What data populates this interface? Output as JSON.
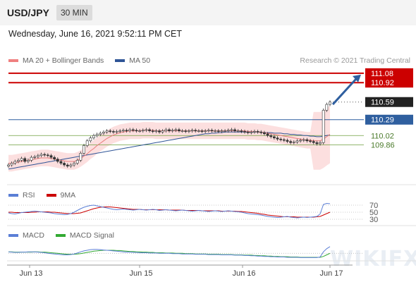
{
  "header": {
    "symbol": "USD/JPY",
    "timeframe": "30 MIN"
  },
  "datetime": "Wednesday, June 16, 2021 9:52:11 PM CET",
  "legend_main": [
    {
      "label": "MA 20 + Bollinger Bands",
      "color": "#f08080"
    },
    {
      "label": "MA 50",
      "color": "#2f5597"
    }
  ],
  "credit": "Research © 2021 Trading Central",
  "legend_rsi": [
    {
      "label": "RSI",
      "color": "#5b7fd6"
    },
    {
      "label": "9MA",
      "color": "#cc0000"
    }
  ],
  "legend_macd": [
    {
      "label": "MACD",
      "color": "#5b7fd6"
    },
    {
      "label": "MACD Signal",
      "color": "#33aa33"
    }
  ],
  "watermark": "WIKIFX",
  "colors": {
    "red_level": "#cc0000",
    "blue_level": "#2f5f9f",
    "green_level": "#6f9f3f",
    "arrow": "#2f5f9f",
    "price_tag": "#222222"
  },
  "chart_data": {
    "type": "candlestick",
    "x_ticks": [
      "Jun 13",
      "Jun 15",
      "Jun 16",
      "Jun 17"
    ],
    "price_levels": [
      {
        "value": "111.08",
        "style": "resistance",
        "color": "#cc0000"
      },
      {
        "value": "110.92",
        "style": "resistance",
        "color": "#cc0000"
      },
      {
        "value": "110.59",
        "style": "last-price",
        "color": "#222222"
      },
      {
        "value": "110.29",
        "style": "pivot",
        "color": "#2f5f9f"
      },
      {
        "value": "110.02",
        "style": "support",
        "color": "#6f9f3f"
      },
      {
        "value": "109.86",
        "style": "support",
        "color": "#6f9f3f"
      }
    ],
    "price_ylim": [
      109.4,
      111.15
    ],
    "price_close": [
      109.52,
      109.55,
      109.58,
      109.6,
      109.63,
      109.58,
      109.6,
      109.65,
      109.66,
      109.68,
      109.7,
      109.69,
      109.68,
      109.65,
      109.62,
      109.58,
      109.55,
      109.52,
      109.5,
      109.52,
      109.55,
      109.6,
      109.72,
      109.85,
      109.93,
      109.98,
      110.02,
      110.04,
      110.06,
      110.08,
      110.1,
      110.09,
      110.08,
      110.09,
      110.1,
      110.11,
      110.1,
      110.12,
      110.11,
      110.1,
      110.1,
      110.11,
      110.12,
      110.1,
      110.09,
      110.1,
      110.08,
      110.1,
      110.12,
      110.1,
      110.11,
      110.12,
      110.1,
      110.1,
      110.09,
      110.1,
      110.11,
      110.1,
      110.1,
      110.09,
      110.1,
      110.11,
      110.1,
      110.1,
      110.09,
      110.1,
      110.1,
      110.11,
      110.12,
      110.1,
      110.1,
      110.09,
      110.08,
      110.07,
      110.08,
      110.09,
      110.08,
      110.07,
      110.05,
      110.02,
      110.0,
      109.98,
      109.96,
      109.95,
      109.94,
      109.92,
      109.9,
      109.91,
      109.93,
      109.94,
      109.95,
      109.93,
      109.92,
      109.9,
      109.88,
      109.9,
      110.45,
      110.55,
      110.59
    ],
    "ma20": [
      109.55,
      109.55,
      109.56,
      109.57,
      109.58,
      109.59,
      109.6,
      109.61,
      109.62,
      109.63,
      109.64,
      109.64,
      109.64,
      109.63,
      109.62,
      109.61,
      109.6,
      109.59,
      109.58,
      109.58,
      109.58,
      109.6,
      109.63,
      109.67,
      109.71,
      109.76,
      109.8,
      109.85,
      109.89,
      109.93,
      109.97,
      110.0,
      110.03,
      110.05,
      110.07,
      110.08,
      110.09,
      110.1,
      110.1,
      110.1,
      110.1,
      110.11,
      110.11,
      110.11,
      110.11,
      110.1,
      110.1,
      110.1,
      110.1,
      110.1,
      110.1,
      110.1,
      110.1,
      110.1,
      110.1,
      110.1,
      110.1,
      110.1,
      110.1,
      110.1,
      110.1,
      110.1,
      110.1,
      110.1,
      110.1,
      110.1,
      110.1,
      110.1,
      110.1,
      110.1,
      110.1,
      110.1,
      110.1,
      110.09,
      110.09,
      110.09,
      110.08,
      110.08,
      110.07,
      110.06,
      110.05,
      110.04,
      110.03,
      110.02,
      110.01,
      110.0,
      109.99,
      109.98,
      109.97,
      109.96,
      109.95,
      109.94,
      109.94,
      109.93,
      109.93,
      109.93,
      109.96,
      110.0,
      110.04
    ],
    "ma50": [
      109.45,
      109.46,
      109.47,
      109.48,
      109.49,
      109.5,
      109.51,
      109.52,
      109.53,
      109.54,
      109.55,
      109.56,
      109.57,
      109.58,
      109.59,
      109.6,
      109.61,
      109.62,
      109.63,
      109.64,
      109.65,
      109.66,
      109.67,
      109.68,
      109.69,
      109.7,
      109.71,
      109.72,
      109.73,
      109.74,
      109.75,
      109.76,
      109.77,
      109.78,
      109.79,
      109.8,
      109.81,
      109.82,
      109.83,
      109.84,
      109.85,
      109.86,
      109.87,
      109.88,
      109.89,
      109.9,
      109.91,
      109.92,
      109.93,
      109.94,
      109.95,
      109.96,
      109.97,
      109.98,
      109.99,
      110.0,
      110.01,
      110.02,
      110.03,
      110.04,
      110.05,
      110.05,
      110.06,
      110.06,
      110.07,
      110.07,
      110.08,
      110.08,
      110.08,
      110.08,
      110.08,
      110.08,
      110.08,
      110.08,
      110.08,
      110.08,
      110.08,
      110.08,
      110.07,
      110.07,
      110.07,
      110.06,
      110.06,
      110.06,
      110.05,
      110.05,
      110.04,
      110.04,
      110.03,
      110.03,
      110.02,
      110.02,
      110.01,
      110.01,
      110.0,
      110.0,
      110.01,
      110.02,
      110.03
    ],
    "forecast_arrow": {
      "from": 110.55,
      "to": 111.08
    },
    "rsi": {
      "levels": [
        "70",
        "50",
        "30"
      ],
      "ylim": [
        20,
        80
      ],
      "rsi": [
        48,
        46,
        45,
        47,
        49,
        50,
        51,
        52,
        53,
        52,
        51,
        50,
        49,
        48,
        46,
        45,
        44,
        43,
        44,
        46,
        50,
        55,
        60,
        64,
        67,
        69,
        70,
        68,
        66,
        64,
        62,
        60,
        58,
        57,
        58,
        59,
        58,
        57,
        56,
        57,
        58,
        57,
        56,
        57,
        58,
        57,
        55,
        56,
        57,
        56,
        55,
        54,
        55,
        56,
        55,
        54,
        53,
        54,
        55,
        54,
        53,
        52,
        53,
        54,
        53,
        52,
        53,
        54,
        53,
        52,
        51,
        50,
        48,
        46,
        45,
        44,
        43,
        42,
        40,
        38,
        37,
        36,
        35,
        36,
        37,
        38,
        36,
        35,
        34,
        35,
        36,
        35,
        36,
        37,
        38,
        45,
        72,
        75,
        74
      ],
      "ma9": [
        50,
        50,
        49,
        49,
        49,
        49,
        49,
        50,
        50,
        51,
        51,
        51,
        51,
        50,
        50,
        49,
        48,
        47,
        46,
        46,
        46,
        47,
        48,
        51,
        54,
        57,
        60,
        62,
        64,
        65,
        65,
        65,
        64,
        63,
        62,
        61,
        60,
        59,
        58,
        58,
        58,
        57,
        57,
        57,
        57,
        57,
        57,
        57,
        57,
        56,
        56,
        56,
        56,
        56,
        55,
        55,
        55,
        55,
        55,
        54,
        54,
        54,
        54,
        54,
        54,
        53,
        53,
        53,
        53,
        53,
        52,
        52,
        51,
        50,
        49,
        48,
        47,
        45,
        44,
        42,
        41,
        40,
        39,
        38,
        37,
        37,
        37,
        37,
        36,
        36,
        36,
        36,
        36,
        36,
        37,
        38,
        42,
        46,
        50
      ]
    },
    "macd": {
      "ylim": [
        -0.2,
        0.4
      ],
      "macd": [
        0.05,
        0.04,
        0.03,
        0.03,
        0.04,
        0.04,
        0.05,
        0.05,
        0.05,
        0.04,
        0.03,
        0.02,
        0.0,
        -0.01,
        -0.02,
        -0.03,
        -0.04,
        -0.05,
        -0.05,
        -0.04,
        -0.02,
        0.01,
        0.05,
        0.08,
        0.1,
        0.12,
        0.13,
        0.13,
        0.12,
        0.11,
        0.1,
        0.09,
        0.08,
        0.07,
        0.06,
        0.05,
        0.04,
        0.04,
        0.03,
        0.03,
        0.02,
        0.02,
        0.02,
        0.01,
        0.01,
        0.01,
        0.0,
        0.0,
        0.0,
        0.0,
        -0.01,
        -0.01,
        -0.01,
        -0.02,
        -0.02,
        -0.02,
        -0.02,
        -0.03,
        -0.03,
        -0.03,
        -0.03,
        -0.04,
        -0.04,
        -0.04,
        -0.04,
        -0.05,
        -0.05,
        -0.05,
        -0.05,
        -0.06,
        -0.06,
        -0.06,
        -0.07,
        -0.07,
        -0.08,
        -0.08,
        -0.09,
        -0.09,
        -0.1,
        -0.1,
        -0.11,
        -0.11,
        -0.12,
        -0.12,
        -0.12,
        -0.13,
        -0.13,
        -0.13,
        -0.13,
        -0.14,
        -0.14,
        -0.14,
        -0.14,
        -0.14,
        -0.14,
        -0.12,
        0.05,
        0.15,
        0.22
      ],
      "signal": [
        0.05,
        0.05,
        0.04,
        0.04,
        0.04,
        0.04,
        0.04,
        0.04,
        0.05,
        0.05,
        0.04,
        0.04,
        0.03,
        0.02,
        0.01,
        0.0,
        -0.01,
        -0.02,
        -0.03,
        -0.03,
        -0.03,
        -0.02,
        -0.01,
        0.01,
        0.03,
        0.05,
        0.07,
        0.08,
        0.09,
        0.1,
        0.1,
        0.1,
        0.1,
        0.09,
        0.09,
        0.08,
        0.07,
        0.06,
        0.06,
        0.05,
        0.05,
        0.04,
        0.04,
        0.03,
        0.03,
        0.02,
        0.02,
        0.02,
        0.01,
        0.01,
        0.01,
        0.0,
        0.0,
        0.0,
        -0.01,
        -0.01,
        -0.01,
        -0.02,
        -0.02,
        -0.02,
        -0.02,
        -0.03,
        -0.03,
        -0.03,
        -0.03,
        -0.04,
        -0.04,
        -0.04,
        -0.04,
        -0.05,
        -0.05,
        -0.05,
        -0.06,
        -0.06,
        -0.06,
        -0.07,
        -0.07,
        -0.08,
        -0.08,
        -0.09,
        -0.09,
        -0.1,
        -0.1,
        -0.11,
        -0.11,
        -0.11,
        -0.12,
        -0.12,
        -0.12,
        -0.13,
        -0.13,
        -0.13,
        -0.13,
        -0.13,
        -0.13,
        -0.13,
        -0.1,
        -0.05,
        0.0
      ]
    }
  }
}
